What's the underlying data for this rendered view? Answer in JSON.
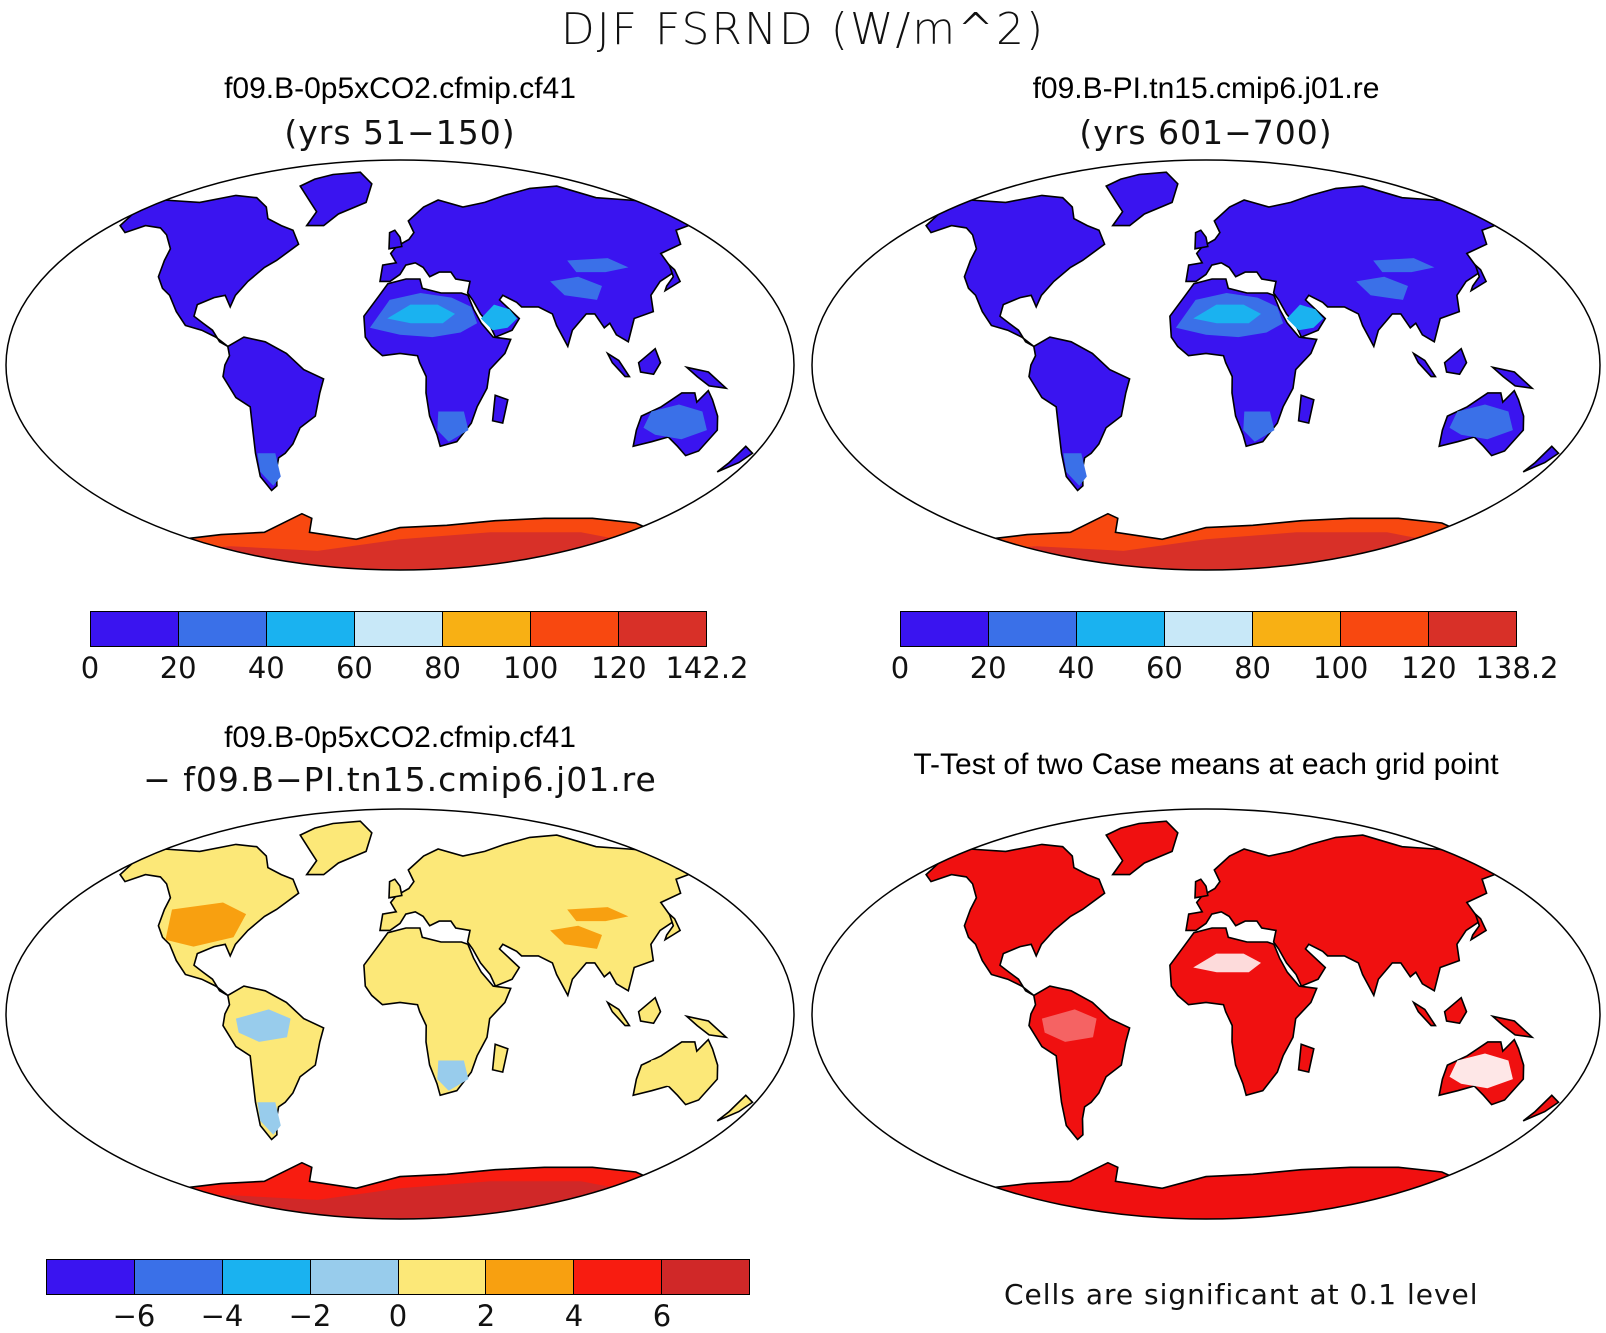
{
  "title": "DJF FSRND (W/m^2)",
  "panels": [
    {
      "id": "top-left",
      "title": "f09.B-0p5xCO2.cfmip.cf41",
      "subtitle": "(yrs 51−150)",
      "kind": "field"
    },
    {
      "id": "top-right",
      "title": "f09.B-PI.tn15.cmip6.j01.re",
      "subtitle": "(yrs 601−700)",
      "kind": "field"
    },
    {
      "id": "bottom-left",
      "title": "f09.B-0p5xCO2.cfmip.cf41",
      "subtitle": "− f09.B−PI.tn15.cmip6.j01.re",
      "kind": "difference"
    },
    {
      "id": "bottom-right",
      "title": "T-Test of two Case means at each grid point",
      "subtitle": "",
      "kind": "ttest"
    }
  ],
  "colorbars": {
    "top_left": {
      "colors": [
        "#3a14f0",
        "#3a70e8",
        "#1ab2f0",
        "#c8e8f8",
        "#f8b014",
        "#f84810",
        "#d83028"
      ],
      "labels": [
        "0",
        "20",
        "40",
        "60",
        "80",
        "100",
        "120",
        "142.2"
      ]
    },
    "top_right": {
      "colors": [
        "#3a14f0",
        "#3a70e8",
        "#1ab2f0",
        "#c8e8f8",
        "#f8b014",
        "#f84810",
        "#d83028"
      ],
      "labels": [
        "0",
        "20",
        "40",
        "60",
        "80",
        "100",
        "120",
        "138.2"
      ]
    },
    "diff": {
      "colors": [
        "#3a14f0",
        "#3a70e8",
        "#1ab2f0",
        "#98ccec",
        "#fce878",
        "#f8a010",
        "#f81c10",
        "#d02828"
      ],
      "labels": [
        "−6",
        "−4",
        "−2",
        "0",
        "2",
        "4",
        "6"
      ]
    }
  },
  "ttest_note": "Cells are significant at 0.1 level",
  "colors": {
    "ocean": "#ffffff",
    "land_low": "#3a14f0",
    "land_mid": "#3a70e8",
    "desert": "#1ab2f0",
    "antarctica_high": "#d83028",
    "antarctica_mid": "#f84810",
    "diff_pos": "#fce878",
    "diff_neg": "#98ccec",
    "diff_strong": "#d02828",
    "significant": "#f01010"
  }
}
